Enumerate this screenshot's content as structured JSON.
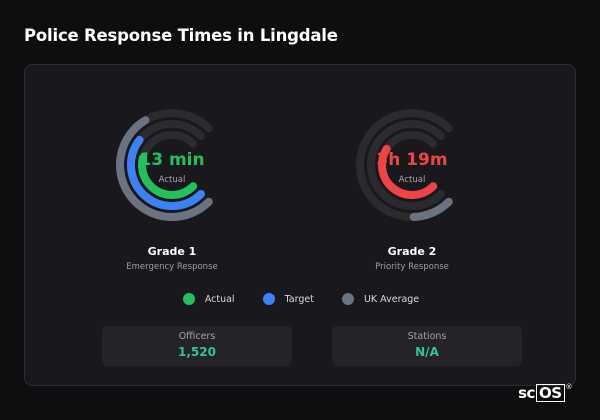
{
  "title": "Police Response Times in Lingdale",
  "colors": {
    "actual": "#22c15e",
    "target": "#3b82f6",
    "uk_average": "#6b7280",
    "track": "#2a2a2f",
    "grade2_actual": "#ef4444",
    "stat_value": "#2ec4a0"
  },
  "gauges": [
    {
      "value_text": "13 min",
      "value_color": "#22c15e",
      "sub": "Actual",
      "grade": "Grade 1",
      "grade_sub": "Emergency Response",
      "levels": {
        "uk_average": 0.72,
        "target": 0.64,
        "actual": 0.55
      },
      "ring_colors": {
        "outer": "#6b7280",
        "middle": "#3b82f6",
        "inner": "#22c15e"
      }
    },
    {
      "value_text": "3h 19m",
      "value_color": "#ef4444",
      "sub": "Actual",
      "grade": "Grade 2",
      "grade_sub": "Priority Response",
      "levels": {
        "uk_average": 0.16,
        "target": 0.0,
        "actual": 0.62
      },
      "ring_colors": {
        "outer": "#6b7280",
        "middle": "#3b82f6",
        "inner": "#ef4444"
      }
    }
  ],
  "legend": [
    {
      "label": "Actual",
      "color": "#22c15e"
    },
    {
      "label": "Target",
      "color": "#3b82f6"
    },
    {
      "label": "UK Average",
      "color": "#6b7280"
    }
  ],
  "stats": [
    {
      "label": "Officers",
      "value": "1,520"
    },
    {
      "label": "Stations",
      "value": "N/A"
    }
  ],
  "brand": {
    "text": "sc",
    "boxed": "OS",
    "reg": "®"
  }
}
